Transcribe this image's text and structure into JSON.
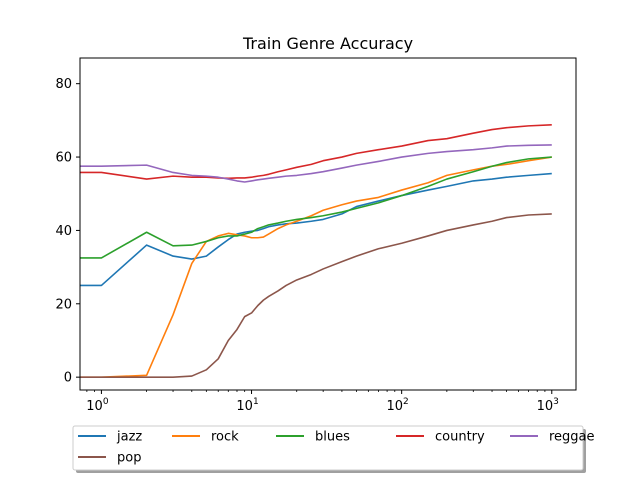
{
  "chart_data": {
    "type": "line",
    "title": "Train Genre Accuracy",
    "xlabel": "",
    "ylabel": "",
    "xscale": "log",
    "xlim": [
      0.72,
      1450
    ],
    "ylim": [
      -3.5,
      87
    ],
    "x_ticks": [
      {
        "value": 1,
        "label": "10",
        "sup": "0"
      },
      {
        "value": 10,
        "label": "10",
        "sup": "1"
      },
      {
        "value": 100,
        "label": "10",
        "sup": "2"
      },
      {
        "value": 1000,
        "label": "10",
        "sup": "3"
      }
    ],
    "y_ticks": [
      0,
      20,
      40,
      60,
      80
    ],
    "grid": false,
    "legend_placement": "below-center",
    "x": [
      0,
      1,
      2,
      3,
      4,
      5,
      6,
      7,
      8,
      9,
      10,
      11,
      12,
      13,
      15,
      17,
      20,
      25,
      30,
      40,
      50,
      70,
      100,
      150,
      200,
      300,
      400,
      500,
      700,
      1000
    ],
    "series": [
      {
        "name": "jazz",
        "color": "#1f77b4",
        "values": [
          25,
          25,
          36,
          33,
          32.2,
          33,
          35.5,
          37.5,
          39,
          39.5,
          39.8,
          40,
          40.5,
          41,
          41.5,
          41.8,
          42,
          42.5,
          43,
          44.5,
          46.5,
          48,
          49.5,
          51,
          52,
          53.5,
          54,
          54.5,
          55,
          55.5
        ]
      },
      {
        "name": "rock",
        "color": "#ff7f0e",
        "values": [
          0,
          0,
          0.5,
          17,
          31,
          37,
          38.5,
          39.2,
          38.8,
          38.5,
          38,
          38,
          38.2,
          39,
          40.5,
          41.5,
          42.5,
          44,
          45.5,
          47,
          48,
          49,
          51,
          53,
          55,
          56.5,
          57.5,
          58,
          59,
          60
        ]
      },
      {
        "name": "blues",
        "color": "#2ca02c",
        "values": [
          32.5,
          32.5,
          39.5,
          35.8,
          36,
          37,
          38,
          38.5,
          38.5,
          39,
          39.5,
          40.5,
          41,
          41.5,
          42,
          42.5,
          43,
          43.5,
          44,
          45,
          46,
          47.5,
          49.5,
          52,
          54,
          56,
          57.5,
          58.5,
          59.5,
          60
        ]
      },
      {
        "name": "country",
        "color": "#d62728",
        "values": [
          55.8,
          55.8,
          54,
          54.8,
          54.5,
          54.5,
          54.3,
          54.2,
          54.3,
          54.3,
          54.5,
          54.8,
          55,
          55.3,
          56,
          56.5,
          57.2,
          58,
          59,
          60,
          61,
          62,
          63,
          64.5,
          65,
          66.5,
          67.5,
          68,
          68.5,
          68.8
        ]
      },
      {
        "name": "reggae",
        "color": "#9467bd",
        "values": [
          57.5,
          57.5,
          57.8,
          55.8,
          55,
          54.8,
          54.5,
          54,
          53.5,
          53.2,
          53.5,
          53.8,
          54,
          54.2,
          54.5,
          54.8,
          55,
          55.5,
          56,
          57,
          57.8,
          58.8,
          60,
          61,
          61.5,
          62,
          62.5,
          63,
          63.2,
          63.3
        ]
      },
      {
        "name": "pop",
        "color": "#8c564b",
        "values": [
          0,
          0,
          0,
          0,
          0.3,
          2,
          5,
          10,
          13,
          16.5,
          17.5,
          19.5,
          21,
          22,
          23.5,
          25,
          26.5,
          28,
          29.5,
          31.5,
          33,
          35,
          36.5,
          38.5,
          40,
          41.5,
          42.5,
          43.5,
          44.2,
          44.5
        ]
      }
    ]
  }
}
